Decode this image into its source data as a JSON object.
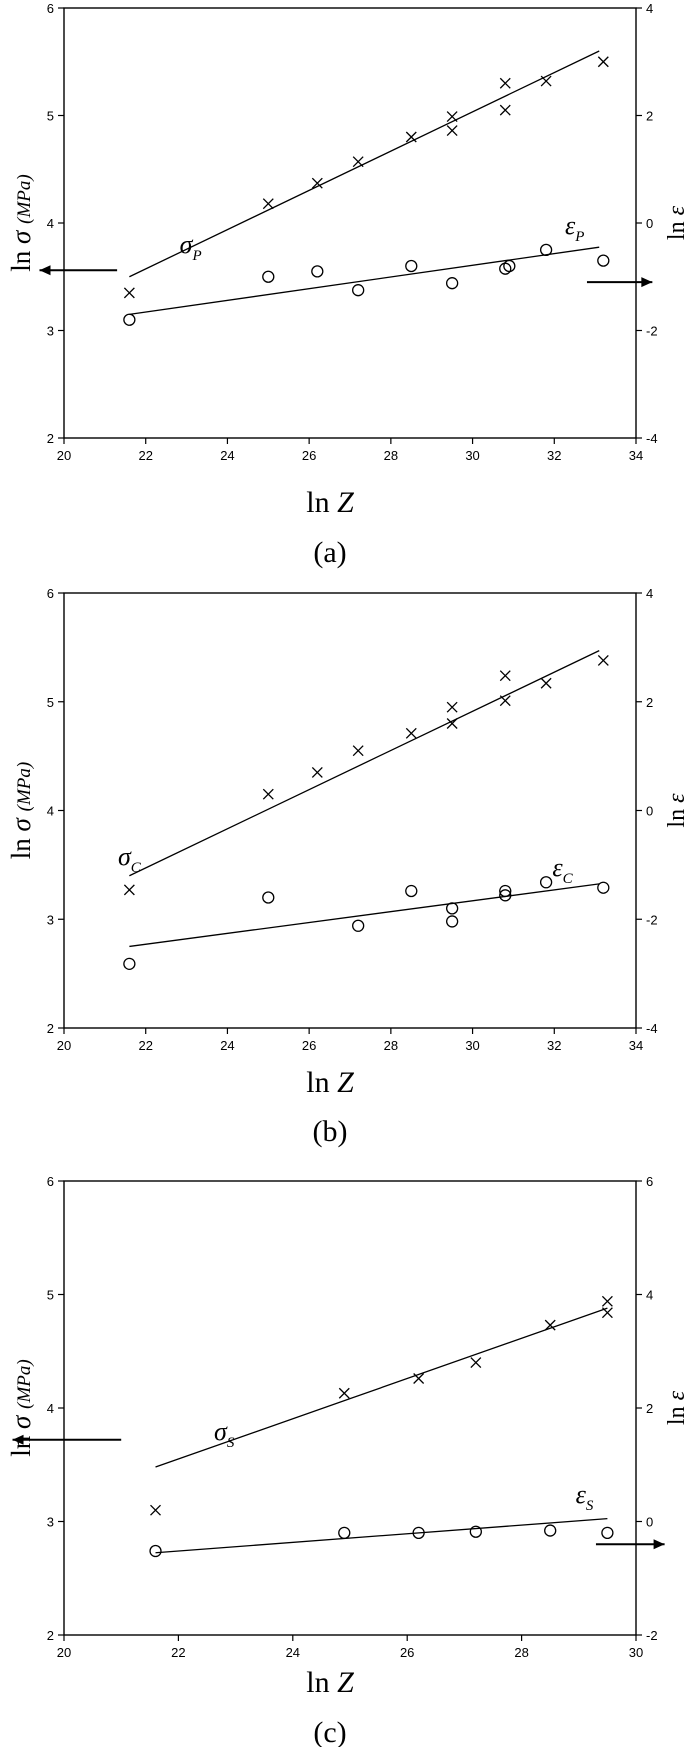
{
  "chart_data": [
    {
      "type": "scatter",
      "panel_label": "(a)",
      "xlabel": "ln Z",
      "ylabel_left": "ln σ  (MPa)",
      "ylabel_right": "ln ε",
      "xlim": [
        20,
        34
      ],
      "xticks": [
        20,
        22,
        24,
        26,
        28,
        30,
        32,
        34
      ],
      "ylim_left": [
        2,
        6
      ],
      "yticks_left": [
        2,
        3,
        4,
        5,
        6
      ],
      "ylim_right": [
        -4,
        4
      ],
      "yticks_right": [
        -4,
        -2,
        0,
        2,
        4
      ],
      "grid": false,
      "series": [
        {
          "name": "σ",
          "subscript": "P",
          "marker": "x",
          "axis": "left",
          "arrow": "left",
          "x": [
            21.6,
            25.0,
            26.2,
            27.2,
            28.5,
            29.5,
            29.5,
            30.8,
            30.8,
            31.8,
            33.2
          ],
          "y": [
            3.35,
            4.18,
            4.37,
            4.57,
            4.8,
            4.86,
            4.99,
            5.05,
            5.3,
            5.32,
            5.5
          ],
          "fit": {
            "x": [
              21.6,
              33.1
            ],
            "y": [
              3.5,
              5.6
            ]
          }
        },
        {
          "name": "ε",
          "subscript": "P",
          "marker": "o",
          "axis": "right",
          "arrow": "right",
          "x": [
            21.6,
            25.0,
            26.2,
            27.2,
            28.5,
            29.5,
            30.8,
            30.9,
            31.8,
            33.2
          ],
          "y": [
            -1.8,
            -1.0,
            -0.9,
            -1.25,
            -0.8,
            -1.12,
            -0.85,
            -0.8,
            -0.5,
            -0.7
          ],
          "fit": {
            "x": [
              21.6,
              33.1
            ],
            "y": [
              -1.7,
              -0.45
            ]
          }
        }
      ]
    },
    {
      "type": "scatter",
      "panel_label": "(b)",
      "xlabel": "ln Z",
      "ylabel_left": "ln σ  (MPa)",
      "ylabel_right": "ln ε",
      "xlim": [
        20,
        34
      ],
      "xticks": [
        20,
        22,
        24,
        26,
        28,
        30,
        32,
        34
      ],
      "ylim_left": [
        2,
        6
      ],
      "yticks_left": [
        2,
        3,
        4,
        5,
        6
      ],
      "ylim_right": [
        -4,
        4
      ],
      "yticks_right": [
        -4,
        -2,
        0,
        2,
        4
      ],
      "grid": false,
      "series": [
        {
          "name": "σ",
          "subscript": "C",
          "marker": "x",
          "axis": "left",
          "arrow": "none",
          "x": [
            21.6,
            25.0,
            26.2,
            27.2,
            28.5,
            29.5,
            29.5,
            30.8,
            30.8,
            31.8,
            33.2
          ],
          "y": [
            3.27,
            4.15,
            4.35,
            4.55,
            4.71,
            4.8,
            4.95,
            5.01,
            5.24,
            5.17,
            5.38
          ],
          "fit": {
            "x": [
              21.6,
              33.1
            ],
            "y": [
              3.4,
              5.47
            ]
          }
        },
        {
          "name": "ε",
          "subscript": "C",
          "marker": "o",
          "axis": "right",
          "arrow": "none",
          "x": [
            21.6,
            25.0,
            27.2,
            28.5,
            29.5,
            29.5,
            30.8,
            30.8,
            31.8,
            33.2
          ],
          "y": [
            -2.82,
            -1.6,
            -2.12,
            -1.48,
            -1.8,
            -2.04,
            -1.56,
            -1.48,
            -1.32,
            -1.42
          ],
          "fit": {
            "x": [
              21.6,
              33.1
            ],
            "y": [
              -2.5,
              -1.35
            ]
          }
        }
      ]
    },
    {
      "type": "scatter",
      "panel_label": "(c)",
      "xlabel": "ln Z",
      "ylabel_left": "ln σ  (MPa)",
      "ylabel_right": "ln ε",
      "xlim": [
        20,
        30
      ],
      "xticks": [
        20,
        22,
        24,
        26,
        28,
        30
      ],
      "ylim_left": [
        2,
        6
      ],
      "yticks_left": [
        2,
        3,
        4,
        5,
        6
      ],
      "ylim_right": [
        -2,
        6
      ],
      "yticks_right": [
        -2,
        0,
        2,
        4,
        6
      ],
      "grid": false,
      "series": [
        {
          "name": "σ",
          "subscript": "S",
          "marker": "x",
          "axis": "left",
          "arrow": "left",
          "x": [
            21.6,
            24.9,
            26.2,
            27.2,
            28.5,
            29.5,
            29.5
          ],
          "y": [
            3.1,
            4.13,
            4.26,
            4.4,
            4.73,
            4.84,
            4.94
          ],
          "fit": {
            "x": [
              21.6,
              29.5
            ],
            "y": [
              3.48,
              4.88
            ]
          }
        },
        {
          "name": "ε",
          "subscript": "S",
          "marker": "o",
          "axis": "right",
          "arrow": "right",
          "x": [
            21.6,
            24.9,
            26.2,
            27.2,
            28.5,
            29.5
          ],
          "y": [
            -0.52,
            -0.2,
            -0.2,
            -0.18,
            -0.16,
            -0.2
          ],
          "fit": {
            "x": [
              21.6,
              29.5
            ],
            "y": [
              -0.55,
              0.05
            ]
          }
        }
      ]
    }
  ]
}
